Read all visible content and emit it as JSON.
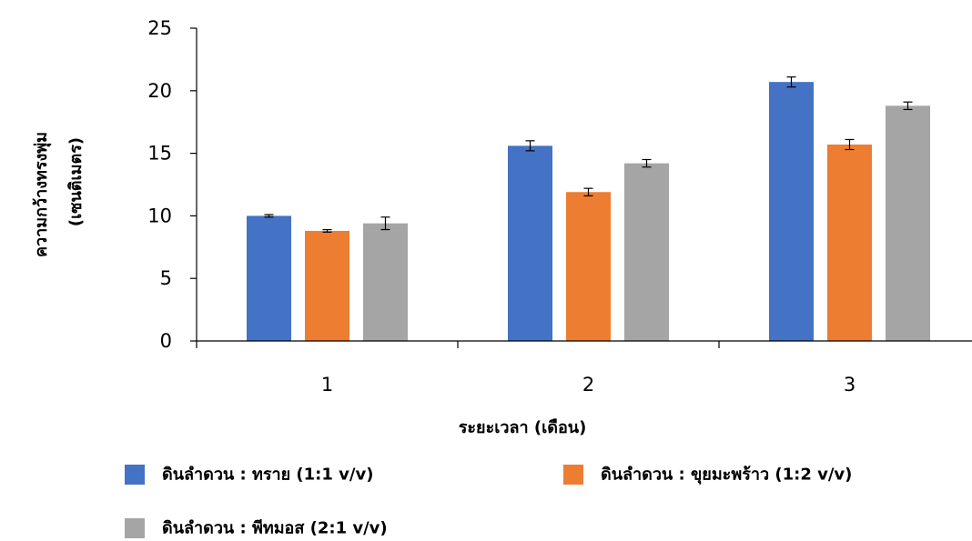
{
  "chart_data": {
    "type": "bar",
    "title": "",
    "xlabel": "ระยะเวลา (เดือน)",
    "ylabel_lines": [
      "ความกว้างทรงพุ่ม",
      "(เซนติเมตร)"
    ],
    "ylim": [
      0,
      25
    ],
    "yticks": [
      0,
      5,
      10,
      15,
      20,
      25
    ],
    "grid": false,
    "legend_position": "bottom",
    "categories": [
      "1",
      "2",
      "3"
    ],
    "series": [
      {
        "name": "ดินลำดวน : ทราย (1:1 v/v)",
        "color": "#4472C4",
        "values": [
          10.0,
          15.6,
          20.7
        ],
        "errors": [
          0.1,
          0.4,
          0.4
        ]
      },
      {
        "name": "ดินลำดวน : ขุยมะพร้าว (1:2 v/v)",
        "color": "#ED7D31",
        "values": [
          8.8,
          11.9,
          15.7
        ],
        "errors": [
          0.1,
          0.3,
          0.4
        ]
      },
      {
        "name": "ดินลำดวน : พีทมอส (2:1 v/v)",
        "color": "#A5A5A5",
        "values": [
          9.4,
          14.2,
          18.8
        ],
        "errors": [
          0.5,
          0.3,
          0.3
        ]
      }
    ]
  }
}
